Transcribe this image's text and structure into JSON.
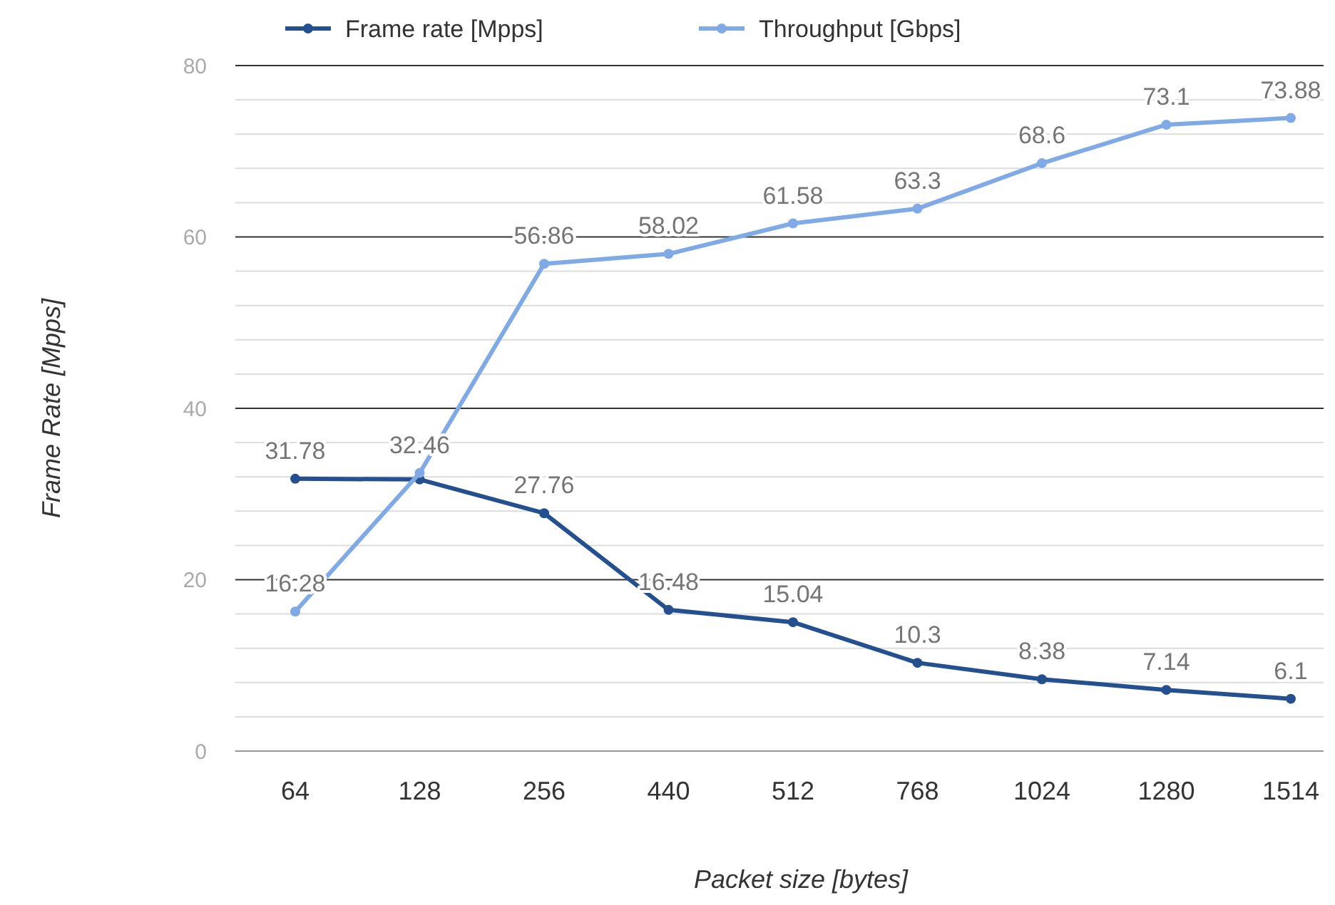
{
  "chart_data": {
    "type": "line",
    "xlabel": "Packet size [bytes]",
    "ylabel": "Frame Rate [Mpps]",
    "categories": [
      "64",
      "128",
      "256",
      "440",
      "512",
      "768",
      "1024",
      "1280",
      "1514"
    ],
    "series": [
      {
        "name": "Frame rate [Mpps]",
        "color": "#24508f",
        "values": [
          31.78,
          31.7,
          27.76,
          16.48,
          15.04,
          10.3,
          8.38,
          7.14,
          6.1
        ],
        "value_labels": [
          "31.78",
          null,
          "27.76",
          "16.48",
          "15.04",
          "10.3",
          "8.38",
          "7.14",
          "6.1"
        ]
      },
      {
        "name": "Throughput [Gbps]",
        "color": "#80aae6",
        "values": [
          16.28,
          32.46,
          56.86,
          58.02,
          61.58,
          63.3,
          68.6,
          73.1,
          73.88
        ],
        "value_labels": [
          "16.28",
          "32.46",
          "56.86",
          "58.02",
          "61.58",
          "63.3",
          "68.6",
          "73.1",
          "73.88"
        ]
      }
    ],
    "ylim": [
      0,
      80
    ],
    "yticks": [
      0,
      {
        "value": 4,
        "label": null
      },
      {
        "value": 8,
        "label": null
      },
      {
        "value": 12,
        "label": null
      },
      {
        "value": 16,
        "label": null
      },
      20,
      {
        "value": 24,
        "label": null
      },
      {
        "value": 28,
        "label": null
      },
      {
        "value": 32,
        "label": null
      },
      {
        "value": 36,
        "label": null
      },
      40,
      {
        "value": 44,
        "label": null
      },
      {
        "value": 48,
        "label": null
      },
      {
        "value": 52,
        "label": null
      },
      {
        "value": 56,
        "label": null
      },
      60,
      {
        "value": 64,
        "label": null
      },
      {
        "value": 68,
        "label": null
      },
      {
        "value": 72,
        "label": null
      },
      {
        "value": 76,
        "label": null
      },
      80
    ],
    "grid": true,
    "legend": "top left",
    "marker": "circle",
    "line_style": "solid"
  }
}
